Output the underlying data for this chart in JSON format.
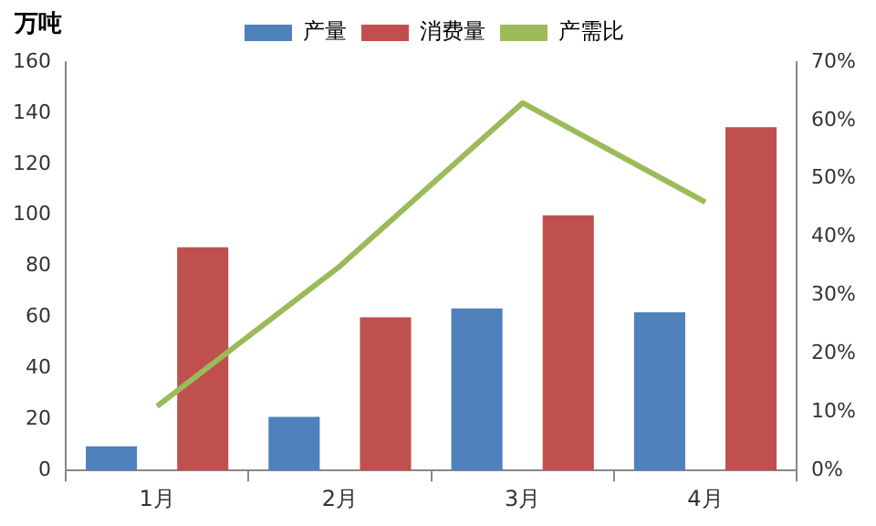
{
  "chart_data": {
    "type": "bar",
    "ylabel": "万吨",
    "categories": [
      "1月",
      "2月",
      "3月",
      "4月"
    ],
    "series": [
      {
        "name": "产量",
        "color": "#4f81bd",
        "values": [
          9.5,
          21,
          63.5,
          62
        ]
      },
      {
        "name": "消费量",
        "color": "#c0504d",
        "values": [
          87.5,
          60,
          100,
          134.5
        ]
      },
      {
        "name": "产需比",
        "type": "line",
        "axis": "y2",
        "color": "#9bbb59",
        "marker": "none",
        "values": [
          11,
          35,
          63,
          46
        ]
      }
    ],
    "ylim": [
      0,
      160
    ],
    "yticks": [
      0,
      20,
      40,
      60,
      80,
      100,
      120,
      140,
      160
    ],
    "y2lim": [
      0,
      70
    ],
    "y2ticks": [
      {
        "value": 0,
        "label": "0%"
      },
      {
        "value": 10,
        "label": "10%"
      },
      {
        "value": 20,
        "label": "20%"
      },
      {
        "value": 30,
        "label": "30%"
      },
      {
        "value": 40,
        "label": "40%"
      },
      {
        "value": 50,
        "label": "50%"
      },
      {
        "value": 60,
        "label": "60%"
      },
      {
        "value": 70,
        "label": "70%"
      }
    ],
    "grid": false,
    "legend": "top"
  }
}
